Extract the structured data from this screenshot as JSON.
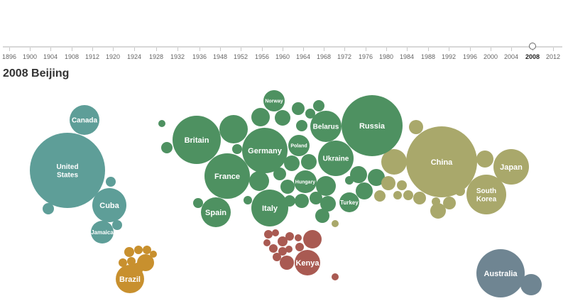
{
  "timeline": {
    "years": [
      "1896",
      "1900",
      "1904",
      "1908",
      "1912",
      "1920",
      "1924",
      "1928",
      "1932",
      "1936",
      "1948",
      "1952",
      "1956",
      "1960",
      "1964",
      "1968",
      "1972",
      "1976",
      "1980",
      "1984",
      "1988",
      "1992",
      "1996",
      "2000",
      "2004",
      "2008",
      "2012"
    ],
    "selected": "2008"
  },
  "title": "2008 Beijing",
  "colors": {
    "north_america": "#5e9e98",
    "south_america": "#c8902e",
    "europe": "#4e9161",
    "asia": "#a9a86b",
    "africa": "#a95a52",
    "oceania": "#6f8592"
  },
  "countries": [
    "United States",
    "Canada",
    "Cuba",
    "Jamaica",
    "Brazil",
    "Britain",
    "France",
    "Spain",
    "Germany",
    "Italy",
    "Norway",
    "Poland",
    "Hungary",
    "Belarus",
    "Ukraine",
    "Turkey",
    "Russia",
    "China",
    "Japan",
    "South Korea",
    "Kenya",
    "Australia"
  ]
}
